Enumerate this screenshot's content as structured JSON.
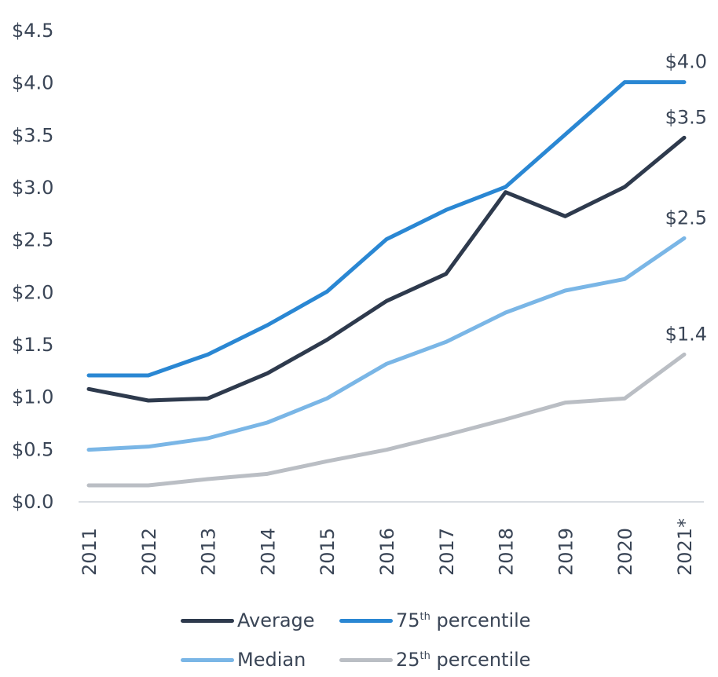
{
  "chart_data": {
    "type": "line",
    "title": "",
    "xlabel": "",
    "ylabel": "",
    "categories": [
      "2011",
      "2012",
      "2013",
      "2014",
      "2015",
      "2016",
      "2017",
      "2018",
      "2019",
      "2020",
      "2021*"
    ],
    "ylim": [
      0,
      4.5
    ],
    "yticks": [
      0.0,
      0.5,
      1.0,
      1.5,
      2.0,
      2.5,
      3.0,
      3.5,
      4.0,
      4.5
    ],
    "ytick_labels": [
      "$0.0",
      "$0.5",
      "$1.0",
      "$1.5",
      "$2.0",
      "$2.5",
      "$3.0",
      "$3.5",
      "$4.0",
      "$4.5"
    ],
    "grid": false,
    "legend_position": "bottom",
    "series": [
      {
        "name": "Average",
        "legend_label": "Average",
        "legend_sup": "",
        "color": "#2e3a4d",
        "values": [
          1.07,
          0.96,
          0.98,
          1.22,
          1.54,
          1.91,
          2.17,
          2.95,
          2.72,
          3.0,
          3.47
        ],
        "end_label": "$3.5"
      },
      {
        "name": "75th percentile",
        "legend_label": "75",
        "legend_sup": "th",
        "legend_suffix": " percentile",
        "color": "#2a87d3",
        "values": [
          1.2,
          1.2,
          1.4,
          1.68,
          2.0,
          2.5,
          2.78,
          3.0,
          3.5,
          4.0,
          4.0
        ],
        "end_label": "$4.0"
      },
      {
        "name": "Median",
        "legend_label": "Median",
        "legend_sup": "",
        "color": "#7ab6e6",
        "values": [
          0.49,
          0.52,
          0.6,
          0.75,
          0.98,
          1.31,
          1.52,
          1.8,
          2.01,
          2.12,
          2.51
        ],
        "end_label": "$2.5"
      },
      {
        "name": "25th percentile",
        "legend_label": "25",
        "legend_sup": "th",
        "legend_suffix": " percentile",
        "color": "#babec4",
        "values": [
          0.15,
          0.15,
          0.21,
          0.26,
          0.38,
          0.49,
          0.63,
          0.78,
          0.94,
          0.98,
          1.4
        ],
        "end_label": "$1.4"
      }
    ]
  }
}
